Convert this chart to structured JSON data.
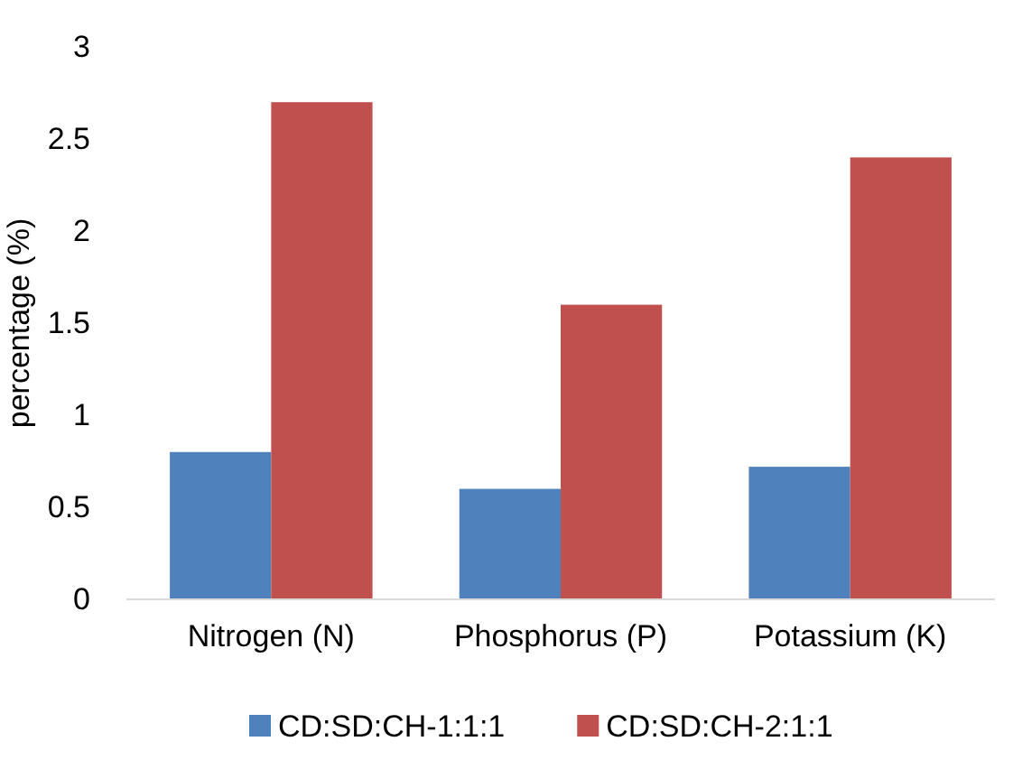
{
  "chart_data": {
    "type": "bar",
    "ylabel": "percentage (%)",
    "categories": [
      "Nitrogen (N)",
      "Phosphorus (P)",
      "Potassium (K)"
    ],
    "series": [
      {
        "name": "CD:SD:CH-1:1:1",
        "color": "#4f81bd",
        "values": [
          0.8,
          0.6,
          0.72
        ]
      },
      {
        "name": "CD:SD:CH-2:1:1",
        "color": "#c0504d",
        "values": [
          2.7,
          1.6,
          2.4
        ]
      }
    ],
    "ylim": [
      0,
      3
    ],
    "yticks": [
      0,
      0.5,
      1,
      1.5,
      2,
      2.5,
      3
    ],
    "grid": false,
    "legend": "bottom"
  }
}
